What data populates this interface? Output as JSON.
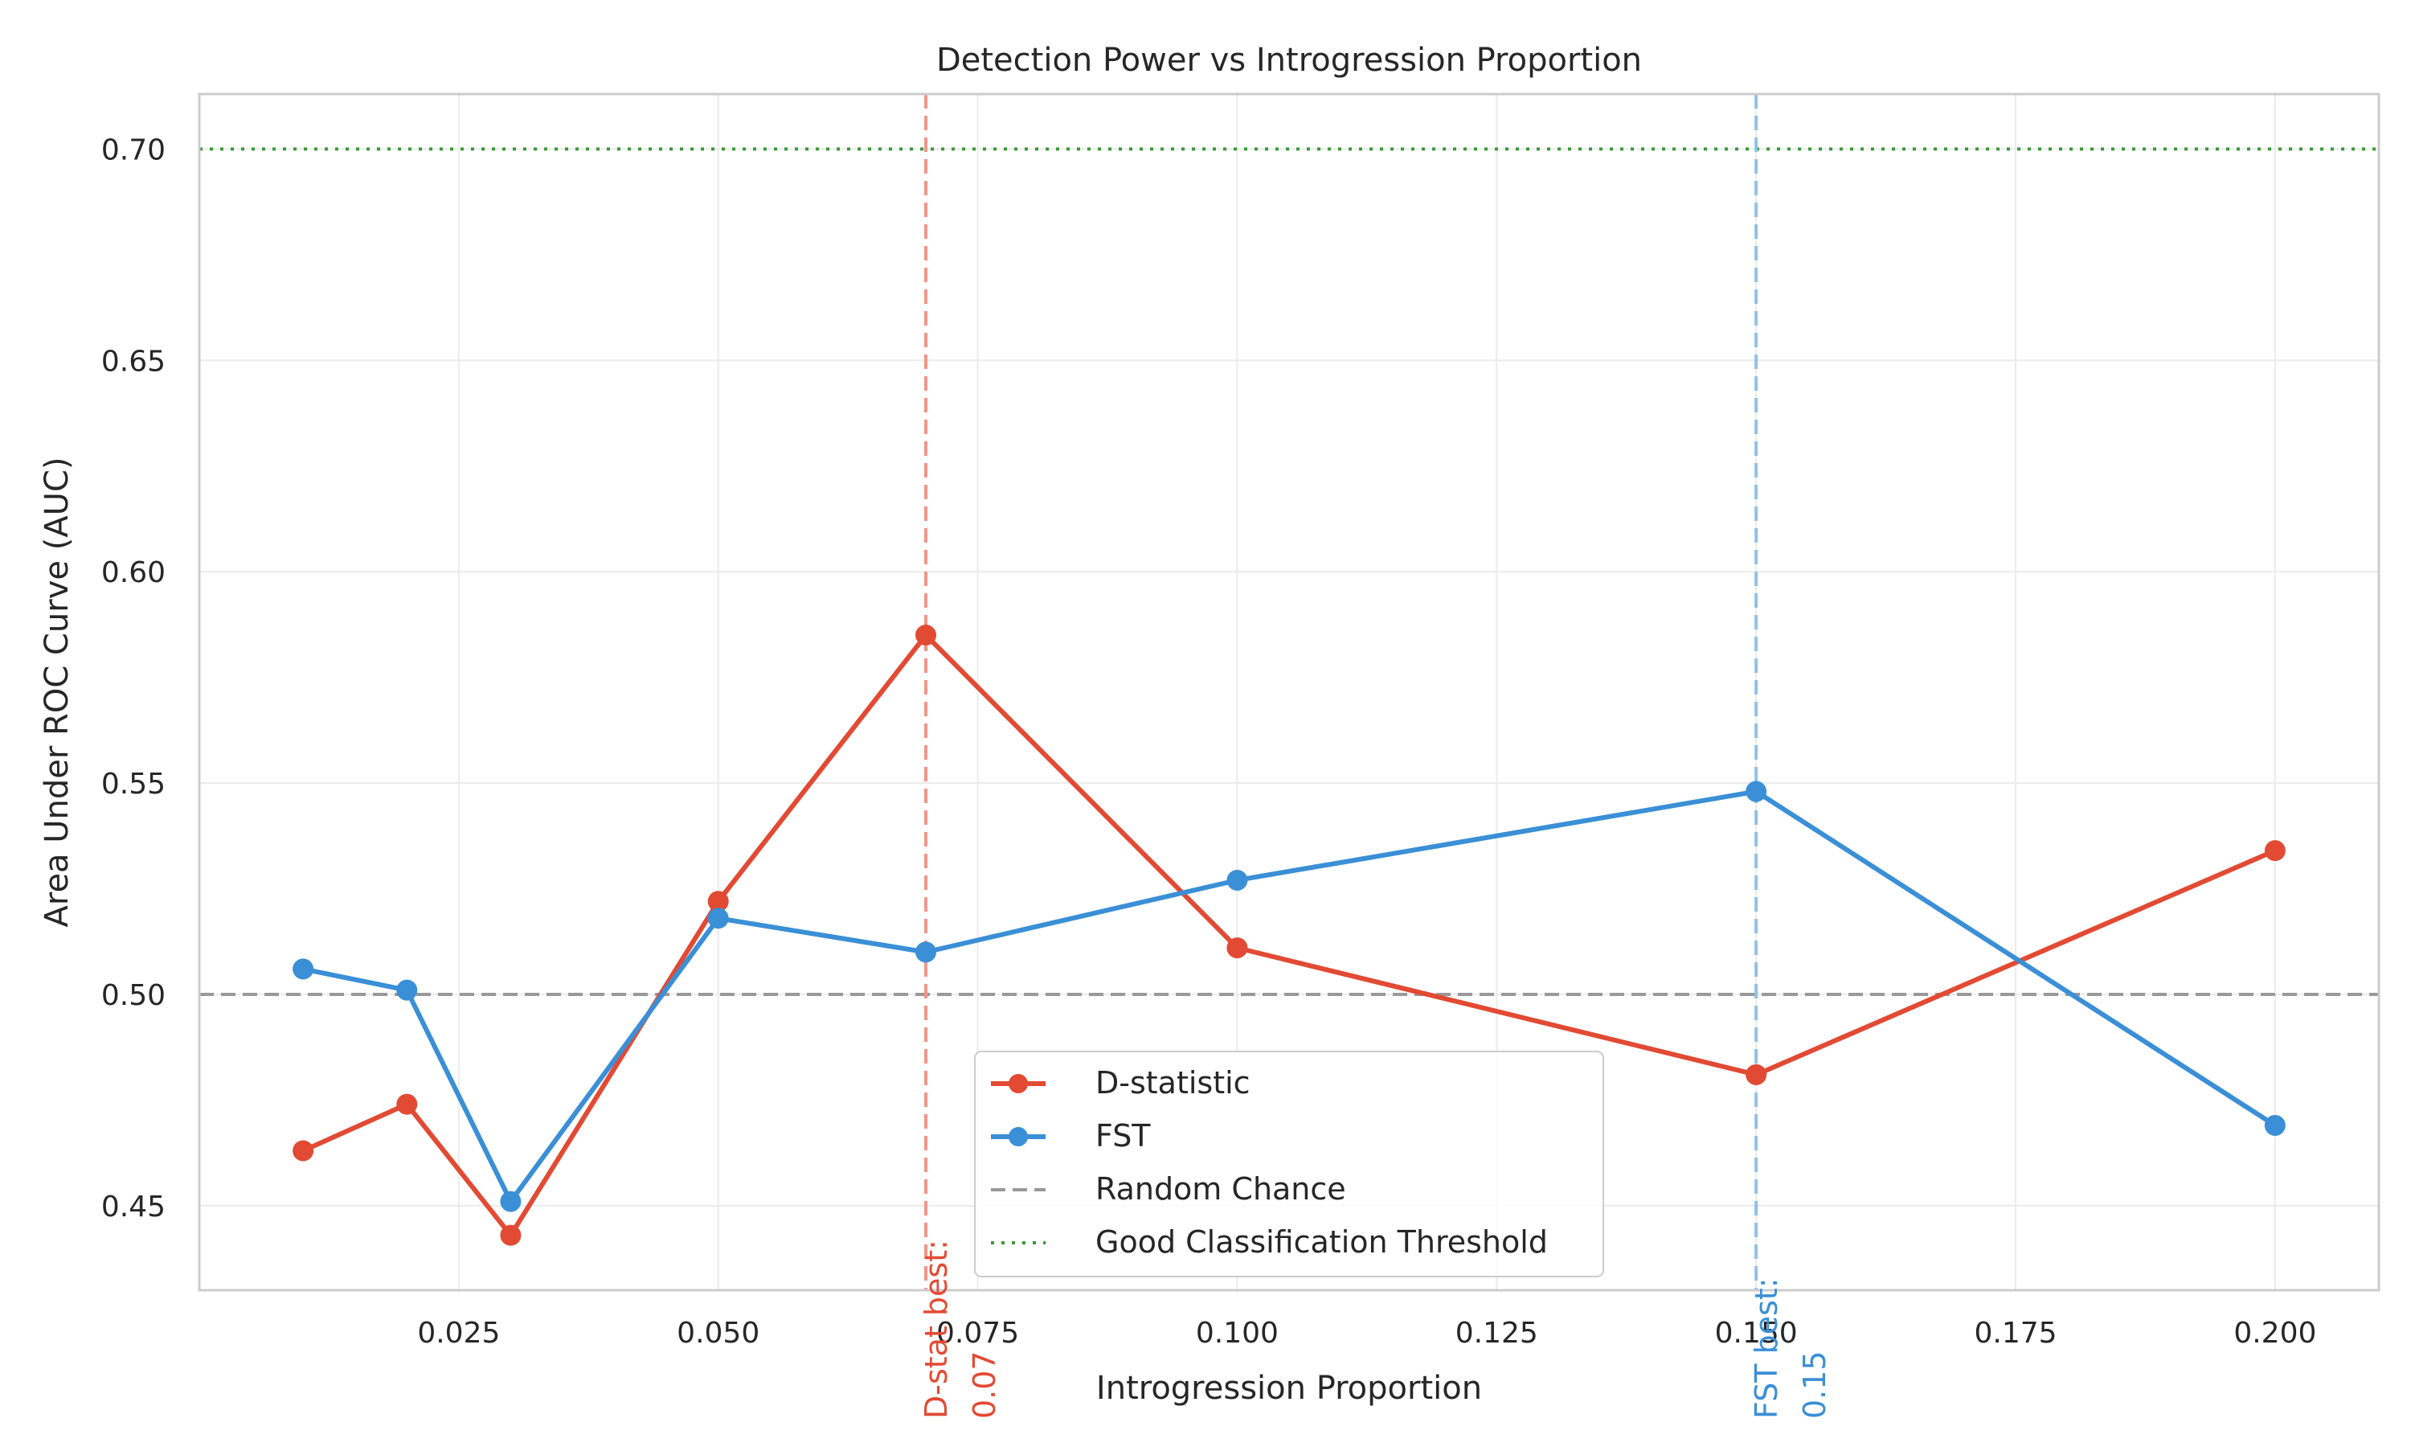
{
  "chart_data": {
    "type": "line",
    "title": "Detection Power vs Introgression Proportion",
    "xlabel": "Introgression Proportion",
    "ylabel": "Area Under ROC Curve (AUC)",
    "xlim": [
      0.0,
      0.21
    ],
    "ylim": [
      0.43,
      0.713
    ],
    "x_ticks": [
      0.025,
      0.05,
      0.075,
      0.1,
      0.125,
      0.15,
      0.175,
      0.2
    ],
    "x_tick_labels": [
      "0.025",
      "0.050",
      "0.075",
      "0.100",
      "0.125",
      "0.150",
      "0.175",
      "0.200"
    ],
    "y_ticks": [
      0.45,
      0.5,
      0.55,
      0.6,
      0.65,
      0.7
    ],
    "y_tick_labels": [
      "0.45",
      "0.50",
      "0.55",
      "0.60",
      "0.65",
      "0.70"
    ],
    "grid": true,
    "legend_position": "bottom-center",
    "x": [
      0.01,
      0.02,
      0.03,
      0.05,
      0.07,
      0.1,
      0.15,
      0.2
    ],
    "series": [
      {
        "name": "D-statistic",
        "color": "#e24a33",
        "values": [
          0.463,
          0.474,
          0.443,
          0.522,
          0.585,
          0.511,
          0.481,
          0.534
        ]
      },
      {
        "name": "FST",
        "color": "#3a8fd6",
        "values": [
          0.506,
          0.501,
          0.451,
          0.518,
          0.51,
          0.527,
          0.548,
          0.469
        ]
      }
    ],
    "reference_lines": [
      {
        "name": "Random Chance",
        "orientation": "horizontal",
        "value": 0.5,
        "style": "dashed",
        "color": "#999999"
      },
      {
        "name": "Good Classification Threshold",
        "orientation": "horizontal",
        "value": 0.7,
        "style": "dotted",
        "color": "#3a9a3a"
      },
      {
        "orientation": "vertical",
        "value": 0.07,
        "style": "dashed",
        "color": "#f0968a",
        "label_line1": "D-stat best:",
        "label_line2": "0.07",
        "label_color": "#e24a33"
      },
      {
        "orientation": "vertical",
        "value": 0.15,
        "style": "dashed",
        "color": "#8fc1ea",
        "label_line1": "FST best:",
        "label_line2": "0.15",
        "label_color": "#3a8fd6"
      }
    ]
  }
}
